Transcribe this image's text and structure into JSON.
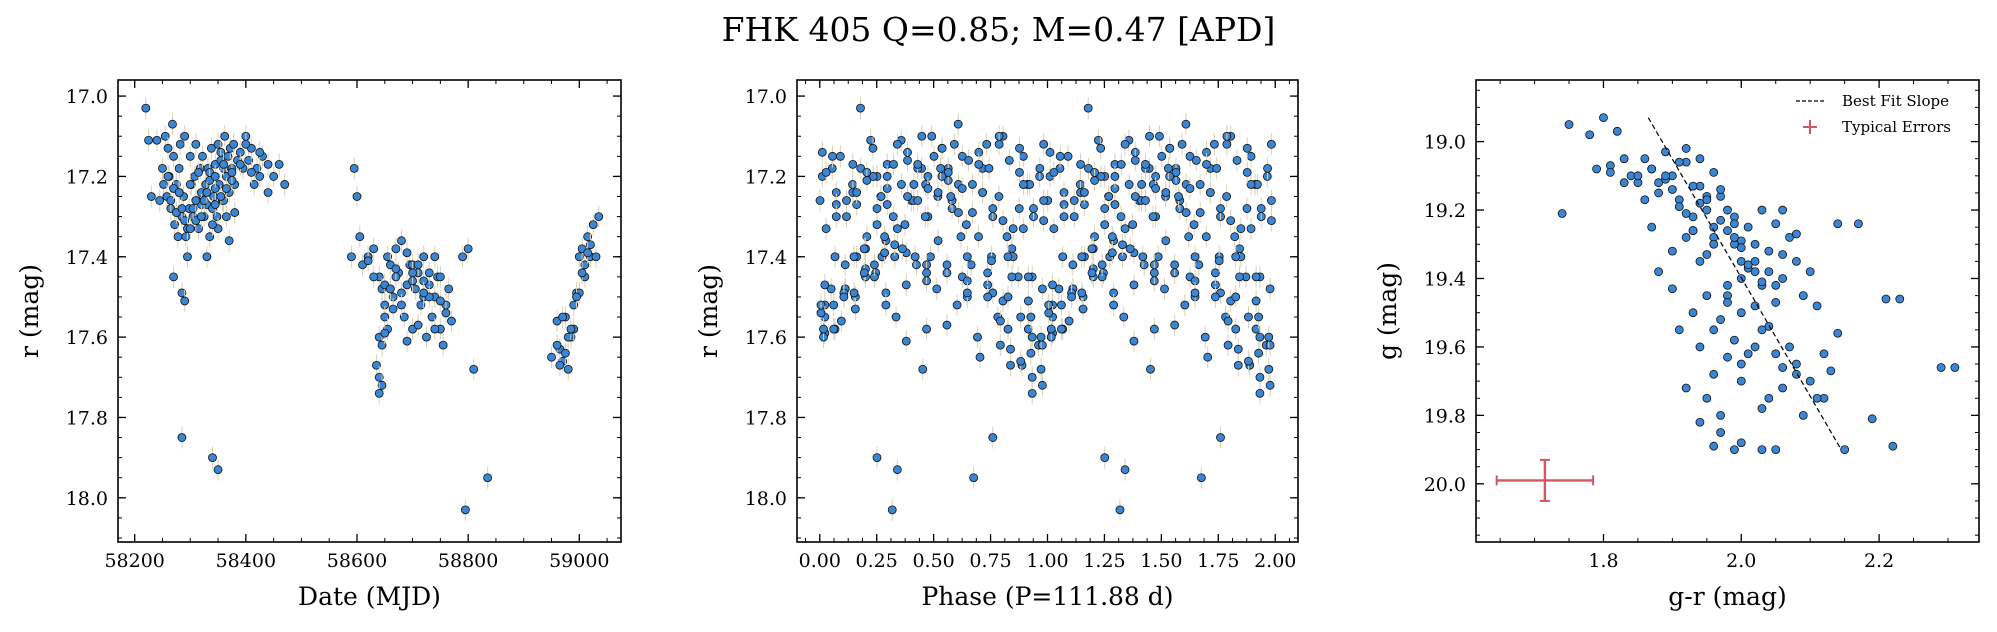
{
  "figure": {
    "title": "FHK 405  Q=0.85; M=0.47 [APD]"
  },
  "colors": {
    "point": "#3a86d4",
    "point_edge": "#111111",
    "errorbar": "#d9d2b8",
    "fit": "#000000",
    "typical_err": "#d0585e"
  },
  "chart_data": [
    {
      "type": "scatter",
      "xlabel": "Date (MJD)",
      "ylabel": "r (mag)",
      "xlim": [
        58170,
        59075
      ],
      "ylim": [
        18.11,
        16.96
      ],
      "y_inverted": true,
      "xticks": [
        58200,
        58400,
        58600,
        58800,
        59000
      ],
      "yticks": [
        17.0,
        17.2,
        17.4,
        17.6,
        17.8,
        18.0
      ],
      "xtick_labels": [
        "58200",
        "58400",
        "58600",
        "58800",
        "59000"
      ],
      "ytick_labels": [
        "17.0",
        "17.2",
        "17.4",
        "17.6",
        "17.8",
        "18.0"
      ],
      "series": [
        {
          "x": [
            58220,
            58225,
            58230,
            58240,
            58245,
            58250,
            58252,
            58255,
            58258,
            58260,
            58262,
            58265,
            58268,
            58270,
            58272,
            58275,
            58278,
            58280,
            58282,
            58285,
            58288,
            58290,
            58292,
            58295,
            58298,
            58300,
            58302,
            58305,
            58308,
            58310,
            58312,
            58315,
            58318,
            58320,
            58322,
            58325,
            58328,
            58330,
            58332,
            58335,
            58338,
            58340,
            58342,
            58345,
            58348,
            58350,
            58352,
            58355,
            58358,
            58360,
            58362,
            58365,
            58368,
            58370,
            58372,
            58375,
            58378,
            58380,
            58385,
            58390,
            58395,
            58400,
            58405,
            58410,
            58415,
            58420,
            58425,
            58430,
            58440,
            58450,
            58460,
            58470,
            58270,
            58285,
            58290,
            58310,
            58330,
            58335,
            58340,
            58345,
            58350,
            58360,
            58370,
            58380,
            58300,
            58320,
            58340,
            58355,
            58365,
            58375,
            58280,
            58290,
            58305,
            58315,
            58325,
            58335,
            58345,
            58355,
            58365,
            58375,
            58390,
            58400,
            58410,
            58425,
            58440,
            58260,
            58265,
            58270,
            58275,
            58280,
            58285,
            58295,
            58310,
            58320,
            58330,
            58345,
            58360,
            58285,
            58300,
            58340,
            58350,
            58590,
            58595,
            58600,
            58605,
            58610,
            58620,
            58630,
            58640,
            58645,
            58650,
            58655,
            58660,
            58665,
            58670,
            58675,
            58680,
            58685,
            58690,
            58695,
            58700,
            58705,
            58710,
            58715,
            58720,
            58725,
            58730,
            58735,
            58740,
            58745,
            58750,
            58755,
            58760,
            58765,
            58770,
            58640,
            58645,
            58650,
            58655,
            58660,
            58665,
            58670,
            58680,
            58690,
            58700,
            58710,
            58720,
            58730,
            58740,
            58750,
            58760,
            58635,
            58640,
            58645,
            58650,
            58700,
            58720,
            58740,
            58620,
            58630,
            58650,
            58670,
            58690,
            58710,
            58730,
            58750,
            58640,
            58660,
            58680,
            58700,
            58720,
            58790,
            58800,
            58810,
            58835,
            58795,
            58950,
            58960,
            58965,
            58970,
            58975,
            58980,
            58985,
            58990,
            58995,
            59000,
            59005,
            59010,
            59015,
            59020,
            59025,
            59030,
            59035,
            58960,
            58970,
            58980,
            58990,
            59000,
            59010,
            59020,
            58965,
            58975,
            58985,
            58995,
            59005,
            59015
          ],
          "y": [
            17.03,
            17.11,
            17.25,
            17.11,
            17.26,
            17.18,
            17.22,
            17.1,
            17.25,
            17.13,
            17.2,
            17.28,
            17.07,
            17.15,
            17.32,
            17.22,
            17.35,
            17.18,
            17.12,
            17.3,
            17.25,
            17.1,
            17.35,
            17.4,
            17.28,
            17.15,
            17.22,
            17.3,
            17.2,
            17.12,
            17.26,
            17.33,
            17.18,
            17.24,
            17.15,
            17.3,
            17.22,
            17.27,
            17.18,
            17.35,
            17.13,
            17.2,
            17.25,
            17.17,
            17.3,
            17.12,
            17.22,
            17.14,
            17.26,
            17.18,
            17.1,
            17.2,
            17.15,
            17.24,
            17.13,
            17.18,
            17.12,
            17.22,
            17.16,
            17.14,
            17.18,
            17.1,
            17.16,
            17.13,
            17.22,
            17.18,
            17.2,
            17.15,
            17.24,
            17.2,
            17.17,
            17.22,
            17.45,
            17.49,
            17.51,
            17.31,
            17.4,
            17.19,
            17.28,
            17.23,
            17.33,
            17.26,
            17.36,
            17.29,
            17.22,
            17.27,
            17.32,
            17.25,
            17.3,
            17.21,
            17.24,
            17.31,
            17.28,
            17.19,
            17.26,
            17.21,
            17.27,
            17.16,
            17.23,
            17.19,
            17.17,
            17.12,
            17.19,
            17.14,
            17.17,
            17.2,
            17.26,
            17.23,
            17.29,
            17.24,
            17.28,
            17.33,
            17.26,
            17.3,
            17.24,
            17.2,
            17.17,
            17.85,
            17.33,
            17.9,
            17.93,
            17.4,
            17.18,
            17.25,
            17.35,
            17.42,
            17.4,
            17.38,
            17.45,
            17.48,
            17.52,
            17.4,
            17.42,
            17.5,
            17.38,
            17.44,
            17.36,
            17.55,
            17.47,
            17.42,
            17.58,
            17.48,
            17.44,
            17.52,
            17.4,
            17.6,
            17.47,
            17.55,
            17.5,
            17.45,
            17.58,
            17.62,
            17.52,
            17.48,
            17.56,
            17.6,
            17.62,
            17.55,
            17.58,
            17.48,
            17.53,
            17.45,
            17.49,
            17.61,
            17.46,
            17.57,
            17.5,
            17.44,
            17.58,
            17.51,
            17.54,
            17.67,
            17.7,
            17.72,
            17.59,
            17.42,
            17.46,
            17.4,
            17.41,
            17.45,
            17.47,
            17.43,
            17.39,
            17.42,
            17.5,
            17.45,
            17.74,
            17.48,
            17.52,
            17.44,
            17.49,
            17.4,
            17.38,
            17.68,
            17.95,
            18.03,
            17.65,
            17.56,
            17.63,
            17.66,
            17.55,
            17.68,
            17.6,
            17.58,
            17.49,
            17.4,
            17.38,
            17.45,
            17.35,
            17.4,
            17.32,
            17.4,
            17.3,
            17.62,
            17.55,
            17.6,
            17.52,
            17.49,
            17.42,
            17.37,
            17.67,
            17.64,
            17.58,
            17.5,
            17.44,
            17.39
          ]
        }
      ]
    },
    {
      "type": "scatter",
      "xlabel": "Phase (P=111.88 d)",
      "ylabel": "r (mag)",
      "xlim": [
        -0.1,
        2.1
      ],
      "ylim": [
        18.11,
        16.96
      ],
      "y_inverted": true,
      "xticks": [
        0.0,
        0.25,
        0.5,
        0.75,
        1.0,
        1.25,
        1.5,
        1.75,
        2.0
      ],
      "yticks": [
        17.0,
        17.2,
        17.4,
        17.6,
        17.8,
        18.0
      ],
      "xtick_labels": [
        "0.00",
        "0.25",
        "0.50",
        "0.75",
        "1.00",
        "1.25",
        "1.50",
        "1.75",
        "2.00"
      ],
      "ytick_labels": [
        "17.0",
        "17.2",
        "17.4",
        "17.6",
        "17.8",
        "18.0"
      ],
      "period_days": 111.88,
      "phase_zero_mjd": 58200,
      "series": [
        {
          "x": [],
          "y": []
        }
      ]
    },
    {
      "type": "scatter",
      "xlabel": "g-r (mag)",
      "ylabel": "g (mag)",
      "xlim": [
        1.615,
        2.345
      ],
      "ylim": [
        20.17,
        18.82
      ],
      "y_inverted": true,
      "xticks": [
        1.8,
        2.0,
        2.2
      ],
      "yticks": [
        19.0,
        19.2,
        19.4,
        19.6,
        19.8,
        20.0
      ],
      "xtick_labels": [
        "1.8",
        "2.0",
        "2.2"
      ],
      "ytick_labels": [
        "19.0",
        "19.2",
        "19.4",
        "19.6",
        "19.8",
        "20.0"
      ],
      "legend": {
        "position": "top-right",
        "entries": [
          "Best Fit Slope",
          "Typical Errors"
        ]
      },
      "fit_line": {
        "x": [
          1.865,
          2.145
        ],
        "y": [
          18.93,
          19.9
        ]
      },
      "typical_error": {
        "x": 1.715,
        "y": 19.99,
        "xerr": 0.07,
        "yerr": 0.06
      },
      "series": [
        {
          "x": [
            1.74,
            1.75,
            1.78,
            1.79,
            1.8,
            1.81,
            1.82,
            1.83,
            1.84,
            1.85,
            1.86,
            1.87,
            1.88,
            1.89,
            1.9,
            1.91,
            1.92,
            1.93,
            1.94,
            1.95,
            1.96,
            1.97,
            1.98,
            1.99,
            2.0,
            2.01,
            2.02,
            2.03,
            2.04,
            2.05,
            2.06,
            2.07,
            2.08,
            2.09,
            2.1,
            2.12,
            2.14,
            2.17,
            1.86,
            1.88,
            1.9,
            1.92,
            1.94,
            1.96,
            1.98,
            2.0,
            1.87,
            1.89,
            1.91,
            1.93,
            1.95,
            1.97,
            1.99,
            2.01,
            2.03,
            1.9,
            1.92,
            1.94,
            1.96,
            1.98,
            2.0,
            2.02,
            2.04,
            2.06,
            1.88,
            1.9,
            1.93,
            1.95,
            1.97,
            1.99,
            2.01,
            2.03,
            2.05,
            2.08,
            1.91,
            1.94,
            1.96,
            1.98,
            2.0,
            2.02,
            2.04,
            2.06,
            2.1,
            2.13,
            1.92,
            1.95,
            1.97,
            2.0,
            2.03,
            2.06,
            2.09,
            2.12,
            1.94,
            1.97,
            2.0,
            2.03,
            2.05,
            2.08,
            2.11,
            2.15,
            1.96,
            1.99,
            2.02,
            2.05,
            2.19,
            2.21,
            2.23,
            2.29,
            2.31,
            2.22,
            1.96,
            1.99,
            2.05,
            1.91,
            1.89,
            1.93,
            1.95,
            1.97,
            1.99,
            2.01,
            2.03,
            1.87,
            1.85,
            1.83,
            1.81,
            1.92,
            2.06,
            2.08,
            1.94,
            1.96,
            2.0,
            2.02,
            2.04,
            1.98,
            2.0,
            1.95,
            1.93,
            1.98,
            2.07,
            2.11,
            2.14
          ],
          "y": [
            19.21,
            18.95,
            18.98,
            19.08,
            18.93,
            19.07,
            18.97,
            19.05,
            19.1,
            19.12,
            19.05,
            19.08,
            19.15,
            19.03,
            19.1,
            19.17,
            19.06,
            19.22,
            19.13,
            19.2,
            19.28,
            19.16,
            19.26,
            19.22,
            19.35,
            19.25,
            19.3,
            19.2,
            19.32,
            19.24,
            19.4,
            19.28,
            19.35,
            19.45,
            19.38,
            19.62,
            19.24,
            19.24,
            19.17,
            19.12,
            19.14,
            19.21,
            19.18,
            19.25,
            19.2,
            19.29,
            19.25,
            19.11,
            19.19,
            19.26,
            19.16,
            19.23,
            19.3,
            19.37,
            19.42,
            19.32,
            19.28,
            19.35,
            19.3,
            19.45,
            19.4,
            19.48,
            19.54,
            19.33,
            19.38,
            19.43,
            19.5,
            19.45,
            19.52,
            19.58,
            19.62,
            19.55,
            19.47,
            19.65,
            19.55,
            19.6,
            19.68,
            19.63,
            19.7,
            19.6,
            19.75,
            19.66,
            19.7,
            19.67,
            19.72,
            19.75,
            19.8,
            19.65,
            19.78,
            19.72,
            19.8,
            19.75,
            19.82,
            19.85,
            19.88,
            19.9,
            19.62,
            19.68,
            19.75,
            19.9,
            19.55,
            19.28,
            19.38,
            19.42,
            19.81,
            19.46,
            19.46,
            19.66,
            19.66,
            19.89,
            19.89,
            19.9,
            19.9,
            19.06,
            19.1,
            19.13,
            19.17,
            19.14,
            19.24,
            19.36,
            19.41,
            19.08,
            19.1,
            19.12,
            19.09,
            19.02,
            19.2,
            19.27,
            19.05,
            19.09,
            19.31,
            19.35,
            19.38,
            19.47,
            19.5,
            19.33,
            19.26,
            19.42,
            19.6,
            19.48,
            19.56
          ]
        }
      ]
    }
  ]
}
